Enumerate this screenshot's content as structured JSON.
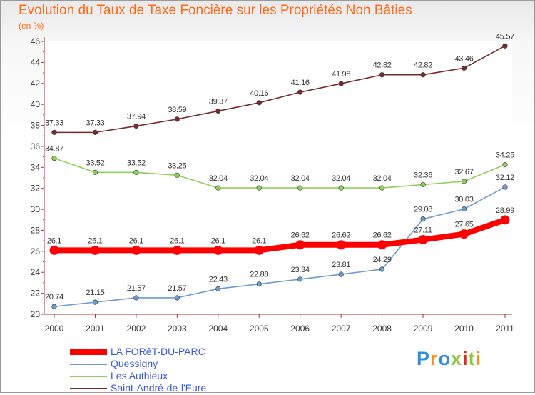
{
  "header": {
    "title": "Evolution du Taux de Taxe Foncière sur les Propriétés Non Bâties",
    "subtitle": "(en %)"
  },
  "chart_data": {
    "type": "line",
    "title": "Evolution du Taux de Taxe Foncière sur les Propriétés Non Bâties",
    "ylabel": "(en %)",
    "xlabel": "",
    "x": [
      "2000",
      "2001",
      "2002",
      "2003",
      "2004",
      "2005",
      "2006",
      "2007",
      "2008",
      "2009",
      "2010",
      "2011"
    ],
    "ylim": [
      20,
      46
    ],
    "yticks": [
      20,
      22,
      24,
      26,
      28,
      30,
      32,
      34,
      36,
      38,
      40,
      42,
      44,
      46
    ],
    "grid": false,
    "legend_position": "bottom-left",
    "series": [
      {
        "name": "LA FORêT-DU-PARC",
        "color": "#ff0000",
        "emphasis": true,
        "values": [
          26.1,
          26.1,
          26.1,
          26.1,
          26.1,
          26.1,
          26.62,
          26.62,
          26.62,
          27.11,
          27.65,
          28.99
        ],
        "labels": [
          "26.1",
          "26.1",
          "26.1",
          "26.1",
          "26.1",
          "26.1",
          "26.62",
          "26.62",
          "26.62",
          "27.11",
          "27.65",
          "28.99"
        ]
      },
      {
        "name": "Quessigny",
        "color": "#6f9bd1",
        "values": [
          20.74,
          21.15,
          21.57,
          21.57,
          22.43,
          22.88,
          23.34,
          23.81,
          24.29,
          29.08,
          30.03,
          32.12
        ],
        "labels": [
          "20.74",
          "21.15",
          "21.57",
          "21.57",
          "22.43",
          "22.88",
          "23.34",
          "23.81",
          "24.29",
          "29.08",
          "30.03",
          "32.12"
        ]
      },
      {
        "name": "Les Authieux",
        "color": "#8fd05a",
        "values": [
          34.87,
          33.52,
          33.52,
          33.25,
          32.04,
          32.04,
          32.04,
          32.04,
          32.04,
          32.36,
          32.67,
          34.25
        ],
        "labels": [
          "34.87",
          "33.52",
          "33.52",
          "33.25",
          "32.04",
          "32.04",
          "32.04",
          "32.04",
          "32.04",
          "32.36",
          "32.67",
          "34.25"
        ]
      },
      {
        "name": "Saint-André-de-l'Eure",
        "color": "#7a2a2a",
        "values": [
          37.33,
          37.33,
          37.94,
          38.59,
          39.37,
          40.16,
          41.16,
          41.98,
          42.82,
          42.82,
          43.46,
          45.57
        ],
        "labels": [
          "37.33",
          "37.33",
          "37.94",
          "38.59",
          "39.37",
          "40.16",
          "41.16",
          "41.98",
          "42.82",
          "42.82",
          "43.46",
          "45.57"
        ]
      }
    ]
  },
  "logo": {
    "text": "Proxiti"
  }
}
